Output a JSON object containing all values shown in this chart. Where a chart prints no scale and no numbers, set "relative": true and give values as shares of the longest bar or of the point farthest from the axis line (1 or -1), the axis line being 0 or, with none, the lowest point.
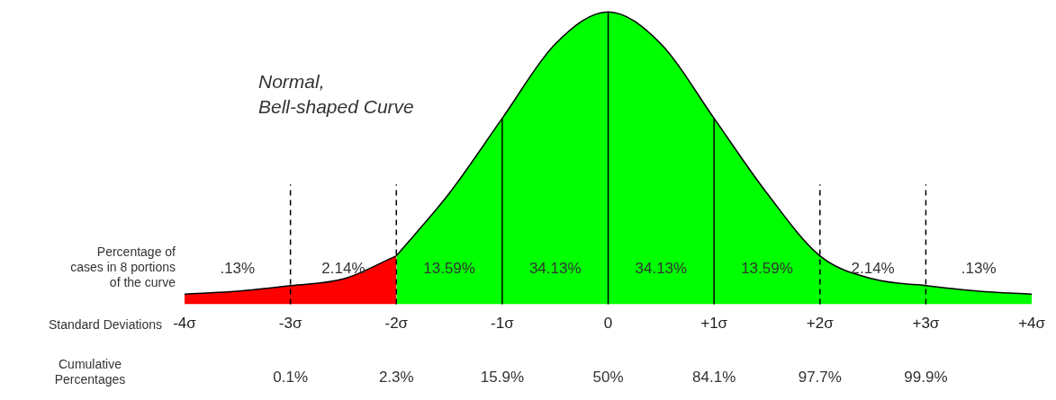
{
  "chart_data": {
    "type": "area",
    "relative": true,
    "xlabel": "Standard Deviations",
    "legend": false,
    "grid": false,
    "marker": "none",
    "xlim": [
      -4,
      4
    ],
    "xticks": [
      {
        "value": -4,
        "label": "-4σ"
      },
      {
        "value": -3,
        "label": "-3σ"
      },
      {
        "value": -2,
        "label": "-2σ"
      },
      {
        "value": -1,
        "label": "-1σ"
      },
      {
        "value": 0,
        "label": "0"
      },
      {
        "value": 1,
        "label": "+1σ"
      },
      {
        "value": 2,
        "label": "+2σ"
      },
      {
        "value": 3,
        "label": "+3σ"
      },
      {
        "value": 4,
        "label": "+4σ"
      }
    ],
    "series": [
      {
        "color": "#ff0000",
        "x": [
          -4,
          -3.5,
          -3,
          -2.5,
          -2
        ],
        "values": [
          0.035,
          0.045,
          0.064,
          0.087,
          0.166
        ]
      },
      {
        "color": "#00ff00",
        "x": [
          -2,
          -1.5,
          -1,
          -0.5,
          0,
          0.5,
          1,
          1.5,
          2,
          2.5,
          3,
          3.5,
          4
        ],
        "values": [
          0.166,
          0.38,
          0.636,
          0.89,
          1,
          0.89,
          0.636,
          0.38,
          0.166,
          0.087,
          0.064,
          0.045,
          0.035
        ]
      }
    ],
    "ref_lines": [
      {
        "axis": "x",
        "value": -3,
        "line_style": "dashed"
      },
      {
        "axis": "x",
        "value": -2,
        "line_style": "dashed"
      },
      {
        "axis": "x",
        "value": -1,
        "line_style": "solid"
      },
      {
        "axis": "x",
        "value": 0,
        "line_style": "solid"
      },
      {
        "axis": "x",
        "value": 1,
        "line_style": "solid"
      },
      {
        "axis": "x",
        "value": 2,
        "line_style": "dashed"
      },
      {
        "axis": "x",
        "value": 3,
        "line_style": "dashed"
      }
    ],
    "annotations": [
      "Normal,\nBell-shaped Curve",
      ".13%",
      "2.14%",
      "13.59%",
      "34.13%",
      "34.13%",
      "13.59%",
      "2.14%",
      ".13%",
      "Percentage of\ncases in 8 portions\nof the curve",
      "Cumulative\nPercentages",
      "0.1%",
      "2.3%",
      "15.9%",
      "50%",
      "84.1%",
      "97.7%",
      "99.9%"
    ]
  }
}
